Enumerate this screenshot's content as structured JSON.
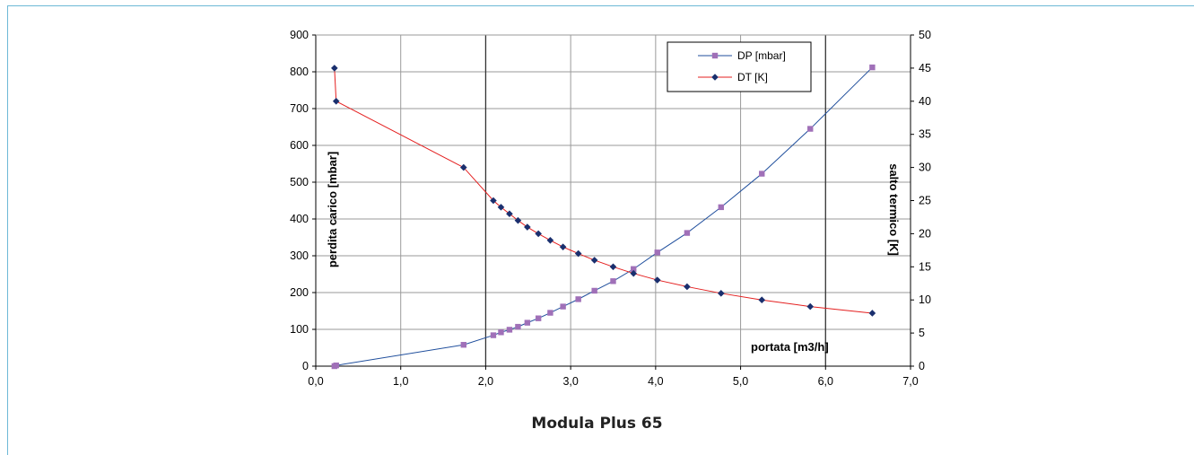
{
  "caption": "Modula Plus 65",
  "colors": {
    "dp": "#1f4e9c",
    "dp_marker": "#a070b8",
    "dt": "#e41f1f",
    "dt_marker": "#1a2f6e",
    "frame": "#6db8d6"
  },
  "chart_data": {
    "type": "line",
    "title": "",
    "xlabel": "portata [m3/h]",
    "ylabel": "perdita carico [mbar]",
    "y2label": "salto termico [K]",
    "xlim": [
      0,
      7
    ],
    "ylim": [
      0,
      900
    ],
    "y2lim": [
      0,
      50
    ],
    "x_ticks": [
      "0,0",
      "1,0",
      "2,0",
      "3,0",
      "4,0",
      "5,0",
      "6,0",
      "7,0"
    ],
    "y_ticks": [
      "0",
      "100",
      "200",
      "300",
      "400",
      "500",
      "600",
      "700",
      "800",
      "900"
    ],
    "y2_ticks": [
      "0",
      "5",
      "10",
      "15",
      "20",
      "25",
      "30",
      "35",
      "40",
      "45",
      "50"
    ],
    "grid": true,
    "legend_position": "top-right",
    "series": [
      {
        "name": "DP [mbar]",
        "axis": "left",
        "points": [
          [
            0.22,
            0
          ],
          [
            0.24,
            2
          ],
          [
            1.74,
            58
          ],
          [
            2.09,
            84
          ],
          [
            2.18,
            92
          ],
          [
            2.28,
            99
          ],
          [
            2.38,
            107
          ],
          [
            2.49,
            118
          ],
          [
            2.62,
            130
          ],
          [
            2.76,
            145
          ],
          [
            2.91,
            162
          ],
          [
            3.09,
            182
          ],
          [
            3.28,
            205
          ],
          [
            3.5,
            231
          ],
          [
            3.74,
            264
          ],
          [
            4.02,
            309
          ],
          [
            4.37,
            362
          ],
          [
            4.77,
            432
          ],
          [
            5.25,
            523
          ],
          [
            5.82,
            645
          ],
          [
            6.55,
            812
          ]
        ]
      },
      {
        "name": "DT [K]",
        "axis": "right",
        "points": [
          [
            0.22,
            45
          ],
          [
            0.24,
            40
          ],
          [
            1.74,
            30
          ],
          [
            2.09,
            25
          ],
          [
            2.18,
            24
          ],
          [
            2.28,
            23
          ],
          [
            2.38,
            22
          ],
          [
            2.49,
            21
          ],
          [
            2.62,
            20
          ],
          [
            2.76,
            19
          ],
          [
            2.91,
            18
          ],
          [
            3.09,
            17
          ],
          [
            3.28,
            16
          ],
          [
            3.5,
            15
          ],
          [
            3.74,
            14
          ],
          [
            4.02,
            13
          ],
          [
            4.37,
            12
          ],
          [
            4.77,
            11
          ],
          [
            5.25,
            10
          ],
          [
            5.82,
            9
          ],
          [
            6.55,
            8
          ]
        ]
      }
    ]
  }
}
